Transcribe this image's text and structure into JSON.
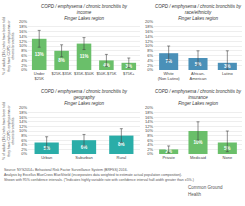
{
  "chart_data": [
    {
      "type": "bar",
      "title": "COPD / emphysema / chronic bronchitis by\nincome\nFinger Lakes region",
      "categories": [
        "Under\n$25K",
        "$25K-$35K",
        "$35K-$50K",
        "$50K-$75K",
        "$75K+"
      ],
      "values": [
        13,
        8,
        11,
        4,
        3
      ],
      "value_labels": [
        "13%",
        "8%",
        "11%",
        "4%",
        "3%"
      ],
      "errors_up": [
        3.5,
        2.5,
        2.5,
        2.5,
        2
      ],
      "errors_dn": [
        3.5,
        2.5,
        2.5,
        2.5,
        2
      ],
      "color": "#6abf6a",
      "ylabel": "% of adults (18+) who have been told\nthey have COPD, emphysema or\nchronic bronchitis",
      "ylim": [
        0,
        20
      ],
      "yticks": [
        {
          "value": 0,
          "label": "0%"
        },
        {
          "value": 2,
          "label": "2%"
        },
        {
          "value": 4,
          "label": "4%"
        },
        {
          "value": 6,
          "label": "6%"
        },
        {
          "value": 8,
          "label": "8%"
        },
        {
          "value": 10,
          "label": "10%"
        },
        {
          "value": 12,
          "label": "12%"
        },
        {
          "value": 14,
          "label": "14%"
        },
        {
          "value": 16,
          "label": "16%"
        },
        {
          "value": 18,
          "label": "18%"
        },
        {
          "value": 20,
          "label": "20%"
        }
      ],
      "grid": true,
      "data_labels": true
    },
    {
      "type": "bar",
      "title": "COPD / emphysema / chronic bronchitis by\nrace/ethnicity\nFinger Lakes region",
      "categories": [
        "White\n(Non Latino)",
        "African-\nAmerican",
        "Latino"
      ],
      "values": [
        7,
        5,
        3
      ],
      "value_labels": [
        "7%",
        "5%",
        "3%"
      ],
      "errors_up": [
        3,
        3,
        5
      ],
      "errors_dn": [
        3,
        3,
        3
      ],
      "color": "#4a90b8",
      "ylim": [
        0,
        20
      ],
      "yticks": [
        {
          "value": 0,
          "label": "0%"
        },
        {
          "value": 2,
          "label": "2%"
        },
        {
          "value": 4,
          "label": "4%"
        },
        {
          "value": 6,
          "label": "6%"
        },
        {
          "value": 8,
          "label": "8%"
        },
        {
          "value": 10,
          "label": "10%"
        },
        {
          "value": 12,
          "label": "12%"
        },
        {
          "value": 14,
          "label": "14%"
        },
        {
          "value": 16,
          "label": "16%"
        },
        {
          "value": 18,
          "label": "18%"
        },
        {
          "value": 20,
          "label": "20%"
        }
      ],
      "grid": true,
      "data_labels": true
    },
    {
      "type": "bar",
      "title": "COPD / emphysema / chronic bronchitis by\ngeography\nFinger Lakes region",
      "categories": [
        "Urban",
        "Suburban",
        "Rural"
      ],
      "values": [
        5,
        6,
        8
      ],
      "value_labels": [
        "5%",
        "6%",
        "8%"
      ],
      "errors_up": [
        2.5,
        2.5,
        3
      ],
      "errors_dn": [
        2.5,
        2.5,
        3
      ],
      "color": "#2aada8",
      "ylabel": "% of adults (18+) who have been told\nthey have COPD, emphysema or\nchronic bronchitis",
      "ylim": [
        0,
        20
      ],
      "yticks": [
        {
          "value": 0,
          "label": "0%"
        },
        {
          "value": 2,
          "label": "2%"
        },
        {
          "value": 4,
          "label": "4%"
        },
        {
          "value": 6,
          "label": "6%"
        },
        {
          "value": 8,
          "label": "8%"
        },
        {
          "value": 10,
          "label": "10%"
        },
        {
          "value": 12,
          "label": "12%"
        },
        {
          "value": 14,
          "label": "14%"
        },
        {
          "value": 16,
          "label": "16%"
        },
        {
          "value": 18,
          "label": "18%"
        },
        {
          "value": 20,
          "label": "20%"
        }
      ],
      "grid": true,
      "data_labels": true
    },
    {
      "type": "bar",
      "title": "COPD / emphysema / chronic bronchitis by\ninsurance\nFinger Lakes region",
      "categories": [
        "Private",
        "Medicaid",
        "None"
      ],
      "values": [
        2,
        10,
        5
      ],
      "value_labels": [
        "2%",
        "10%",
        "5%"
      ],
      "errors_up": [
        1.5,
        4,
        5
      ],
      "errors_dn": [
        1.5,
        4,
        4
      ],
      "color": "#6abf6a",
      "ylim": [
        0,
        20
      ],
      "yticks": [
        {
          "value": 0,
          "label": "0%"
        },
        {
          "value": 2,
          "label": "2%"
        },
        {
          "value": 4,
          "label": "4%"
        },
        {
          "value": 6,
          "label": "6%"
        },
        {
          "value": 8,
          "label": "8%"
        },
        {
          "value": 10,
          "label": "10%"
        },
        {
          "value": 12,
          "label": "12%"
        },
        {
          "value": 14,
          "label": "14%"
        },
        {
          "value": 16,
          "label": "16%"
        },
        {
          "value": 18,
          "label": "18%"
        },
        {
          "value": 20,
          "label": "20%"
        }
      ],
      "grid": true,
      "data_labels": true
    }
  ],
  "annotations": [
    "Source: NYS2014+ Behavioral Risk Factor Surveillance System (BRFSS) 2016.",
    "Analysis by Excellus BlueCross BlueShield (incorporates data weighted to estimate actual population composition).",
    "Shown with 95% confidence intervals. (*Indicates highly variable rate with confidence interval half-width greater than ±5%.)",
    "Common Ground",
    "Health"
  ]
}
